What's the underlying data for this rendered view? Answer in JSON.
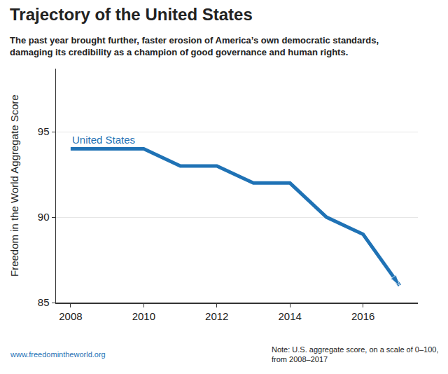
{
  "chart_data": {
    "type": "line",
    "title": "Trajectory of the United States",
    "subtitle": [
      "The past year brought further, faster erosion of America’s own democratic standards,",
      "damaging its credibility as a champion of good governance and human rights."
    ],
    "ylabel": "Freedom in the World Aggregate Score",
    "source": "www.freedomintheworld.org",
    "note": [
      "Note: U.S. aggregate score, on a scale of 0–100,",
      "from 2008–2017"
    ],
    "x": [
      2008,
      2009,
      2010,
      2011,
      2012,
      2013,
      2014,
      2015,
      2016,
      2017
    ],
    "series": [
      {
        "name": "United States",
        "color": "#1f72b5",
        "values": [
          94,
          94,
          94,
          93,
          93,
          92,
          92,
          90,
          89,
          86
        ],
        "marker": "arrow"
      }
    ],
    "xlim": [
      2007.6,
      2017.5
    ],
    "xticks": [
      2008,
      2010,
      2012,
      2014,
      2016
    ],
    "ylim": [
      85,
      98.7
    ],
    "yticks": [
      85,
      90,
      95
    ],
    "grid": true
  }
}
